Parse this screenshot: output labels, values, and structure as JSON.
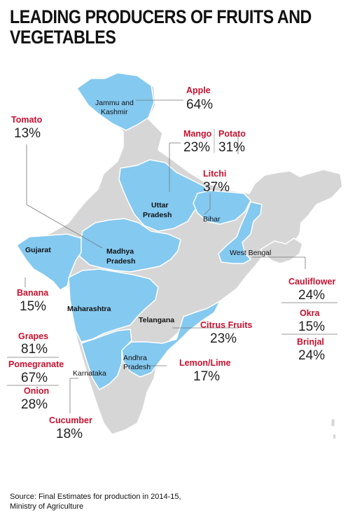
{
  "title": {
    "line1": "LEADING PRODUCERS OF FRUITS AND",
    "line2": "VEGETABLES"
  },
  "colors": {
    "highlight": "#84c9f0",
    "other": "#d6d6d6",
    "crop_label": "#c8102e"
  },
  "states": {
    "jk": {
      "line1": "Jammu and",
      "line2": "Kashmir"
    },
    "up": {
      "line1": "Uttar",
      "line2": "Pradesh"
    },
    "bihar": "Bihar",
    "mp": {
      "line1": "Madhya",
      "line2": "Pradesh"
    },
    "gujarat": "Gujarat",
    "wb": "West Bengal",
    "maharashtra": "Maharashtra",
    "telangana": "Telangana",
    "ap": {
      "line1": "Andhra",
      "line2": "Pradesh"
    },
    "karnataka": "Karnataka"
  },
  "crops": {
    "apple": {
      "name": "Apple",
      "share": "64%"
    },
    "tomato": {
      "name": "Tomato",
      "share": "13%"
    },
    "mango": {
      "name": "Mango",
      "share": "23%"
    },
    "potato": {
      "name": "Potato",
      "share": "31%"
    },
    "litchi": {
      "name": "Litchi",
      "share": "37%"
    },
    "banana": {
      "name": "Banana",
      "share": "15%"
    },
    "cauliflower": {
      "name": "Cauliflower",
      "share": "24%"
    },
    "okra": {
      "name": "Okra",
      "share": "15%"
    },
    "brinjal": {
      "name": "Brinjal",
      "share": "24%"
    },
    "citrus": {
      "name": "Citrus Fruits",
      "share": "23%"
    },
    "grapes": {
      "name": "Grapes",
      "share": "81%"
    },
    "pomegranate": {
      "name": "Pomegranate",
      "share": "67%"
    },
    "onion": {
      "name": "Onion",
      "share": "28%"
    },
    "lemon": {
      "name": "Lemon/Lime",
      "share": "17%"
    },
    "cucumber": {
      "name": "Cucumber",
      "share": "18%"
    }
  },
  "source": {
    "line1": "Source: Final Estimates for production in 2014-15,",
    "line2": "Ministry of Agriculture"
  }
}
